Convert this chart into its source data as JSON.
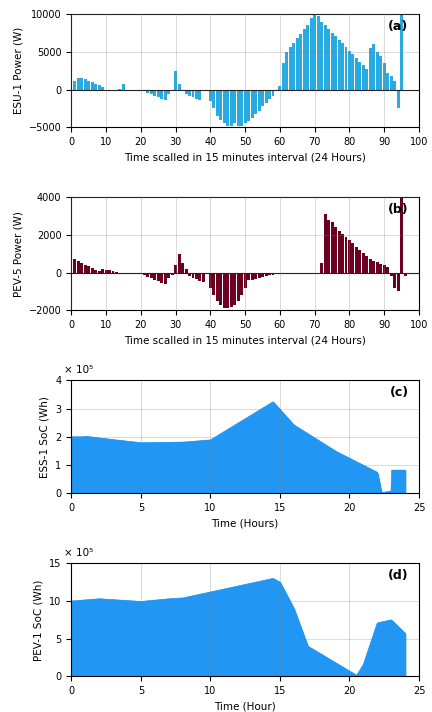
{
  "fig_width": 4.32,
  "fig_height": 7.12,
  "dpi": 100,
  "panel_a": {
    "ylabel": "ESU-1 Power (W)",
    "xlabel": "Time scalled in 15 minutes interval (24 Hours)",
    "ylim": [
      -5000,
      10000
    ],
    "xlim": [
      0,
      100
    ],
    "xticks": [
      0,
      10,
      20,
      30,
      40,
      50,
      60,
      70,
      80,
      90,
      100
    ],
    "yticks": [
      -5000,
      0,
      5000,
      10000
    ],
    "bar_color": "#29abe2",
    "label": "(a)"
  },
  "panel_b": {
    "ylabel": "PEV-5 Power (W)",
    "xlabel": "Time scalled in 15 minutes interval (24 Hours)",
    "ylim": [
      -2000,
      4000
    ],
    "xlim": [
      0,
      100
    ],
    "xticks": [
      0,
      10,
      20,
      30,
      40,
      50,
      60,
      70,
      80,
      90,
      100
    ],
    "yticks": [
      -2000,
      0,
      2000,
      4000
    ],
    "bar_color": "#6b0020",
    "label": "(b)"
  },
  "panel_c": {
    "ylabel": "ESS-1 SoC (Wh)",
    "xlabel": "Time (Hours)",
    "ylim": [
      0,
      400000
    ],
    "xlim": [
      0,
      24
    ],
    "xticks": [
      0,
      5,
      10,
      15,
      20,
      25
    ],
    "fill_color": "#2196f3",
    "label": "(c)",
    "scale_label": "× 10⁵"
  },
  "panel_d": {
    "ylabel": "PEV-1 SoC (Wh)",
    "xlabel": "Time (Hour)",
    "ylim": [
      0,
      1500000
    ],
    "xlim": [
      0,
      24
    ],
    "xticks": [
      0,
      5,
      10,
      15,
      20,
      25
    ],
    "fill_color": "#2196f3",
    "label": "(d)",
    "scale_label": "× 10⁵"
  }
}
